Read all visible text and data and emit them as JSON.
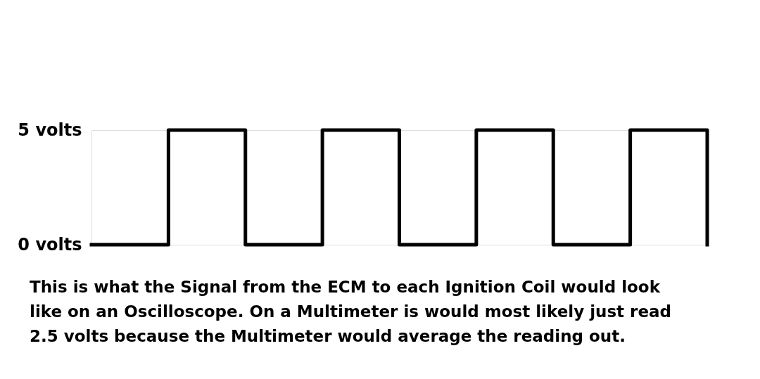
{
  "chart_data": {
    "type": "step",
    "categories": [
      null,
      null,
      null,
      null,
      null,
      null,
      null,
      null,
      null
    ],
    "values": [
      0,
      5,
      0,
      5,
      0,
      5,
      0,
      5,
      0
    ],
    "color": "#000000",
    "line_style": "solid",
    "ylim": [
      0,
      5
    ],
    "yticks": [
      {
        "value": 0,
        "label": "0 volts"
      },
      {
        "value": 5,
        "label": "5 volts"
      }
    ],
    "tick_labels": "y",
    "grid": false,
    "annotations": [
      "This is what the Signal from the ECM to each Ignition Coil would look like on an Oscilloscope. On a Multimeter is would most likely just read 2.5 volts because the Multimeter would average the reading out."
    ]
  }
}
